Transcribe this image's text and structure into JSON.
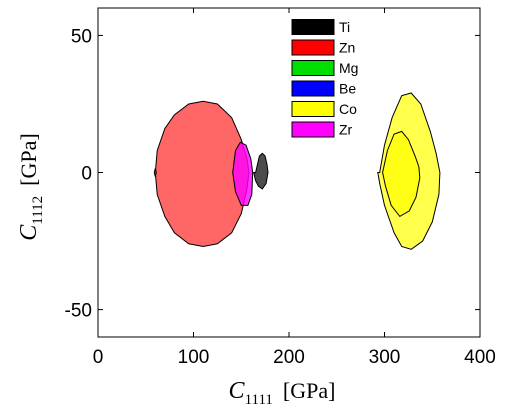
{
  "chart_data": {
    "type": "area",
    "xlabel": {
      "var": "C",
      "sub": "1111",
      "unit": "[GPa]"
    },
    "ylabel": {
      "var": "C",
      "sub": "1112",
      "unit": "[GPa]"
    },
    "xlim": [
      0,
      400
    ],
    "ylim": [
      -60,
      60
    ],
    "xticks": [
      0,
      100,
      200,
      300,
      400
    ],
    "xtick_labels": [
      "0",
      "100",
      "200",
      "300",
      "400"
    ],
    "yticks": [
      -50,
      0,
      50
    ],
    "ytick_labels": [
      "-50",
      "0",
      "50"
    ],
    "grid": false,
    "legend_position": "top-right",
    "series": [
      {
        "name": "Ti",
        "color": "#000000",
        "opacity": 0.7,
        "regions": [
          {
            "x": [
              165,
              169,
              172,
              175,
              177,
              178,
              176,
              172,
              168,
              165,
              163,
              163
            ],
            "y": [
              0,
              6,
              7,
              6,
              3,
              0,
              -4,
              -6,
              -5,
              -3,
              0,
              0
            ]
          }
        ]
      },
      {
        "name": "Zn",
        "color": "#ff0000",
        "opacity": 0.6,
        "regions": [
          {
            "x": [
              60,
              62,
              70,
              80,
              95,
              110,
              125,
              140,
              150,
              156,
              158,
              156,
              150,
              140,
              125,
              110,
              95,
              80,
              70,
              62
            ],
            "y": [
              0,
              8,
              16,
              21,
              25,
              26,
              25,
              20,
              12,
              5,
              0,
              -6,
              -15,
              -22,
              -26,
              -27,
              -26,
              -22,
              -16,
              -8
            ]
          }
        ]
      },
      {
        "name": "Mg",
        "color": "#00dd00",
        "opacity": 0.8,
        "regions": [
          {
            "x": [
              59,
              60,
              61,
              60,
              59
            ],
            "y": [
              0,
              1.5,
              0,
              -1.5,
              0
            ]
          }
        ]
      },
      {
        "name": "Be",
        "color": "#0000ff",
        "opacity": 0.8,
        "regions": []
      },
      {
        "name": "Co",
        "color": "#ffff00",
        "opacity": 0.7,
        "regions": [
          {
            "x": [
              295,
              300,
              308,
              318,
              328,
              338,
              348,
              354,
              358,
              357,
              350,
              340,
              328,
              318,
              310,
              300,
              295,
              293
            ],
            "y": [
              0,
              10,
              20,
              28,
              29,
              25,
              15,
              7,
              0,
              -8,
              -18,
              -25,
              -28,
              -27,
              -22,
              -12,
              -4,
              0
            ]
          },
          {
            "x": [
              298,
              303,
              310,
              318,
              325,
              332,
              336,
              337,
              333,
              326,
              316,
              307,
              301,
              298
            ],
            "y": [
              0,
              8,
              14,
              15,
              12,
              6,
              2,
              -2,
              -9,
              -14,
              -16,
              -12,
              -5,
              0
            ]
          }
        ]
      },
      {
        "name": "Zr",
        "color": "#ff00ff",
        "opacity": 0.8,
        "regions": [
          {
            "x": [
              141,
              144,
              149,
              155,
              160,
              162,
              161,
              157,
              150,
              144,
              141
            ],
            "y": [
              0,
              8,
              11,
              10,
              5,
              0,
              -8,
              -12,
              -12,
              -7,
              0
            ]
          }
        ]
      }
    ]
  }
}
